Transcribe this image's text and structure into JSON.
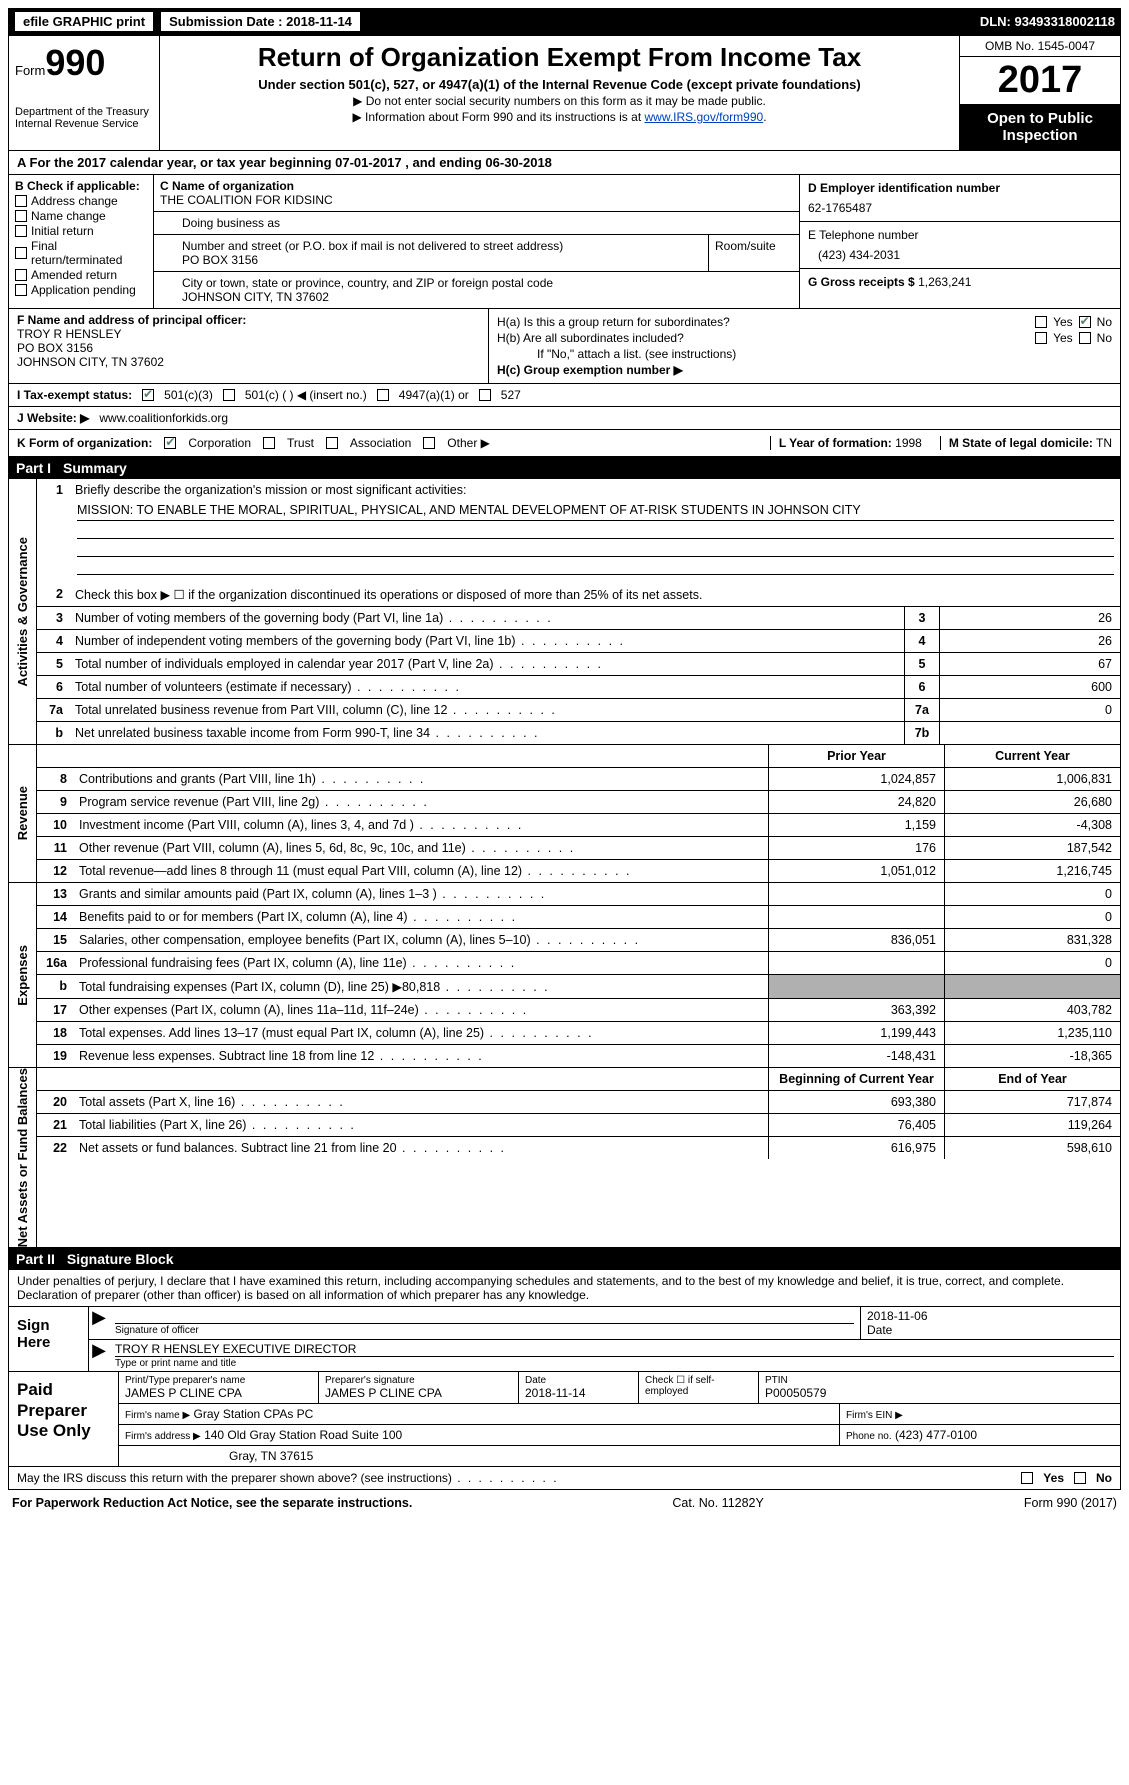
{
  "colors": {
    "black": "#000000",
    "white": "#ffffff",
    "shade": "#b0b0b0",
    "link": "#0040c0",
    "check": "#5f7f6f"
  },
  "topbar": {
    "efile": "efile GRAPHIC print",
    "sub_label": "Submission Date :",
    "sub_date": "2018-11-14",
    "dln_label": "DLN:",
    "dln": "93493318002118"
  },
  "header": {
    "form_label": "Form",
    "form_no": "990",
    "dept": "Department of the Treasury",
    "irs": "Internal Revenue Service",
    "title": "Return of Organization Exempt From Income Tax",
    "sub": "Under section 501(c), 527, or 4947(a)(1) of the Internal Revenue Code (except private foundations)",
    "note1": "▶ Do not enter social security numbers on this form as it may be made public.",
    "note2_pre": "▶ Information about Form 990 and its instructions is at ",
    "note2_link": "www.IRS.gov/form990",
    "omb": "OMB No. 1545-0047",
    "year": "2017",
    "open": "Open to Public Inspection"
  },
  "rowA": {
    "text": "A  For the 2017 calendar year, or tax year beginning 07-01-2017   , and ending 06-30-2018"
  },
  "secB": {
    "label": "B Check if applicable:",
    "items": [
      "Address change",
      "Name change",
      "Initial return",
      "Final return/terminated",
      "Amended return",
      "Application pending"
    ]
  },
  "secC": {
    "name_lbl": "C Name of organization",
    "name": "THE COALITION FOR KIDSINC",
    "dba_lbl": "Doing business as",
    "dba": "",
    "street_lbl": "Number and street (or P.O. box if mail is not delivered to street address)",
    "room_lbl": "Room/suite",
    "street": "PO BOX 3156",
    "city_lbl": "City or town, state or province, country, and ZIP or foreign postal code",
    "city": "JOHNSON CITY, TN  37602"
  },
  "secD": {
    "ein_lbl": "D Employer identification number",
    "ein": "62-1765487",
    "tel_lbl": "E Telephone number",
    "tel": "(423) 434-2031",
    "gross_lbl": "G Gross receipts $",
    "gross": "1,263,241"
  },
  "secF": {
    "lbl": "F  Name and address of principal officer:",
    "l1": "TROY R HENSLEY",
    "l2": "PO BOX 3156",
    "l3": "JOHNSON CITY, TN  37602"
  },
  "secH": {
    "ha": "H(a)  Is this a group return for subordinates?",
    "hb": "H(b)  Are all subordinates included?",
    "hbnote": "If \"No,\" attach a list. (see instructions)",
    "hc": "H(c)  Group exemption number ▶",
    "yes": "Yes",
    "no": "No"
  },
  "rowI": {
    "lbl": "I  Tax-exempt status:",
    "o1": "501(c)(3)",
    "o2": "501(c) (   ) ◀ (insert no.)",
    "o3": "4947(a)(1) or",
    "o4": "527"
  },
  "rowJ": {
    "lbl": "J  Website: ▶",
    "val": "www.coalitionforkids.org"
  },
  "rowK": {
    "lbl": "K Form of organization:",
    "opts": [
      "Corporation",
      "Trust",
      "Association",
      "Other ▶"
    ],
    "yf_lbl": "L Year of formation:",
    "yf": "1998",
    "dom_lbl": "M State of legal domicile:",
    "dom": "TN"
  },
  "part1": {
    "num": "Part I",
    "title": "Summary"
  },
  "gov": {
    "vlabel": "Activities & Governance",
    "l1": "Briefly describe the organization's mission or most significant activities:",
    "mission": "MISSION: TO ENABLE THE MORAL, SPIRITUAL, PHYSICAL, AND MENTAL DEVELOPMENT OF AT-RISK STUDENTS IN JOHNSON CITY",
    "l2": "Check this box ▶ ☐  if the organization discontinued its operations or disposed of more than 25% of its net assets.",
    "rows": [
      {
        "n": "3",
        "t": "Number of voting members of the governing body (Part VI, line 1a)",
        "ln": "3",
        "v": "26"
      },
      {
        "n": "4",
        "t": "Number of independent voting members of the governing body (Part VI, line 1b)",
        "ln": "4",
        "v": "26"
      },
      {
        "n": "5",
        "t": "Total number of individuals employed in calendar year 2017 (Part V, line 2a)",
        "ln": "5",
        "v": "67"
      },
      {
        "n": "6",
        "t": "Total number of volunteers (estimate if necessary)",
        "ln": "6",
        "v": "600"
      },
      {
        "n": "7a",
        "t": "Total unrelated business revenue from Part VIII, column (C), line 12",
        "ln": "7a",
        "v": "0"
      },
      {
        "n": "b",
        "t": "Net unrelated business taxable income from Form 990-T, line 34",
        "ln": "7b",
        "v": ""
      }
    ]
  },
  "rev": {
    "vlabel": "Revenue",
    "hdr_prior": "Prior Year",
    "hdr_curr": "Current Year",
    "rows": [
      {
        "n": "8",
        "t": "Contributions and grants (Part VIII, line 1h)",
        "p": "1,024,857",
        "c": "1,006,831"
      },
      {
        "n": "9",
        "t": "Program service revenue (Part VIII, line 2g)",
        "p": "24,820",
        "c": "26,680"
      },
      {
        "n": "10",
        "t": "Investment income (Part VIII, column (A), lines 3, 4, and 7d )",
        "p": "1,159",
        "c": "-4,308"
      },
      {
        "n": "11",
        "t": "Other revenue (Part VIII, column (A), lines 5, 6d, 8c, 9c, 10c, and 11e)",
        "p": "176",
        "c": "187,542"
      },
      {
        "n": "12",
        "t": "Total revenue—add lines 8 through 11 (must equal Part VIII, column (A), line 12)",
        "p": "1,051,012",
        "c": "1,216,745"
      }
    ]
  },
  "exp": {
    "vlabel": "Expenses",
    "rows": [
      {
        "n": "13",
        "t": "Grants and similar amounts paid (Part IX, column (A), lines 1–3 )",
        "p": "",
        "c": "0"
      },
      {
        "n": "14",
        "t": "Benefits paid to or for members (Part IX, column (A), line 4)",
        "p": "",
        "c": "0"
      },
      {
        "n": "15",
        "t": "Salaries, other compensation, employee benefits (Part IX, column (A), lines 5–10)",
        "p": "836,051",
        "c": "831,328"
      },
      {
        "n": "16a",
        "t": "Professional fundraising fees (Part IX, column (A), line 11e)",
        "p": "",
        "c": "0"
      },
      {
        "n": "b",
        "t": "Total fundraising expenses (Part IX, column (D), line 25) ▶80,818",
        "p": "shade",
        "c": "shade"
      },
      {
        "n": "17",
        "t": "Other expenses (Part IX, column (A), lines 11a–11d, 11f–24e)",
        "p": "363,392",
        "c": "403,782"
      },
      {
        "n": "18",
        "t": "Total expenses. Add lines 13–17 (must equal Part IX, column (A), line 25)",
        "p": "1,199,443",
        "c": "1,235,110"
      },
      {
        "n": "19",
        "t": "Revenue less expenses. Subtract line 18 from line 12",
        "p": "-148,431",
        "c": "-18,365"
      }
    ]
  },
  "net": {
    "vlabel": "Net Assets or Fund Balances",
    "hdr_beg": "Beginning of Current Year",
    "hdr_end": "End of Year",
    "rows": [
      {
        "n": "20",
        "t": "Total assets (Part X, line 16)",
        "p": "693,380",
        "c": "717,874"
      },
      {
        "n": "21",
        "t": "Total liabilities (Part X, line 26)",
        "p": "76,405",
        "c": "119,264"
      },
      {
        "n": "22",
        "t": "Net assets or fund balances. Subtract line 21 from line 20",
        "p": "616,975",
        "c": "598,610"
      }
    ]
  },
  "part2": {
    "num": "Part II",
    "title": "Signature Block"
  },
  "sig": {
    "decl": "Under penalties of perjury, I declare that I have examined this return, including accompanying schedules and statements, and to the best of my knowledge and belief, it is true, correct, and complete. Declaration of preparer (other than officer) is based on all information of which preparer has any knowledge.",
    "sign_here": "Sign Here",
    "sig_of_officer": "Signature of officer",
    "date_lbl": "Date",
    "date": "2018-11-06",
    "name": "TROY R HENSLEY EXECUTIVE DIRECTOR",
    "type_lbl": "Type or print name and title"
  },
  "prep": {
    "lbl": "Paid Preparer Use Only",
    "r1": {
      "a_lbl": "Print/Type preparer's name",
      "a": "JAMES P CLINE CPA",
      "b_lbl": "Preparer's signature",
      "b": "JAMES P CLINE CPA",
      "c_lbl": "Date",
      "c": "2018-11-14",
      "d_lbl": "Check ☐ if self-employed",
      "e_lbl": "PTIN",
      "e": "P00050579"
    },
    "r2": {
      "a_lbl": "Firm's name    ▶",
      "a": "Gray Station CPAs PC",
      "b_lbl": "Firm's EIN ▶",
      "b": ""
    },
    "r3": {
      "a_lbl": "Firm's address ▶",
      "a": "140 Old Gray Station Road Suite 100",
      "b_lbl": "Phone no.",
      "b": "(423) 477-0100"
    },
    "r4": {
      "a": "Gray, TN  37615"
    }
  },
  "discuss": {
    "txt": "May the IRS discuss this return with the preparer shown above? (see instructions)",
    "yes": "Yes",
    "no": "No"
  },
  "footer": {
    "l": "For Paperwork Reduction Act Notice, see the separate instructions.",
    "m": "Cat. No. 11282Y",
    "r": "Form 990 (2017)"
  }
}
